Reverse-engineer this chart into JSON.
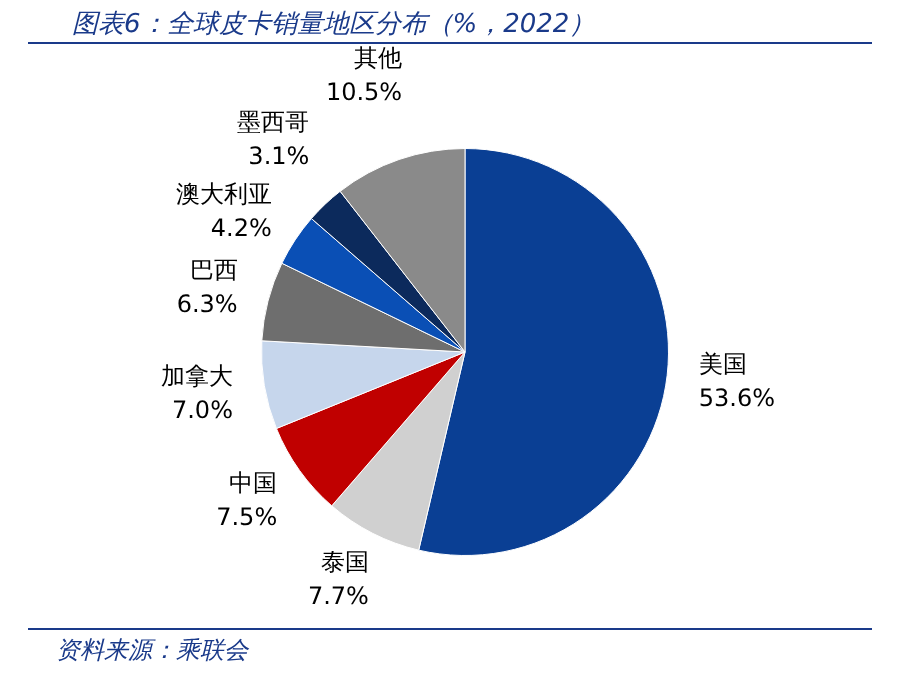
{
  "chart_data": {
    "type": "pie",
    "title": "图表6：全球皮卡销量地区分布（%，2022）",
    "categories": [
      "美国",
      "泰国",
      "中国",
      "加拿大",
      "巴西",
      "澳大利亚",
      "墨西哥",
      "其他"
    ],
    "values": [
      53.6,
      7.7,
      7.5,
      7.0,
      6.3,
      4.2,
      3.1,
      10.5
    ],
    "colors": [
      "#0a3f94",
      "#d0d0d0",
      "#c00000",
      "#c6d6ec",
      "#6e6e6e",
      "#0a4fb5",
      "#0c2a5c",
      "#8a8a8a"
    ],
    "value_labels": [
      "53.6%",
      "7.7%",
      "7.5%",
      "7.0%",
      "6.3%",
      "4.2%",
      "3.1%",
      "10.5%"
    ],
    "annotations": [
      "资料来源：乘联会"
    ],
    "legend": false
  }
}
